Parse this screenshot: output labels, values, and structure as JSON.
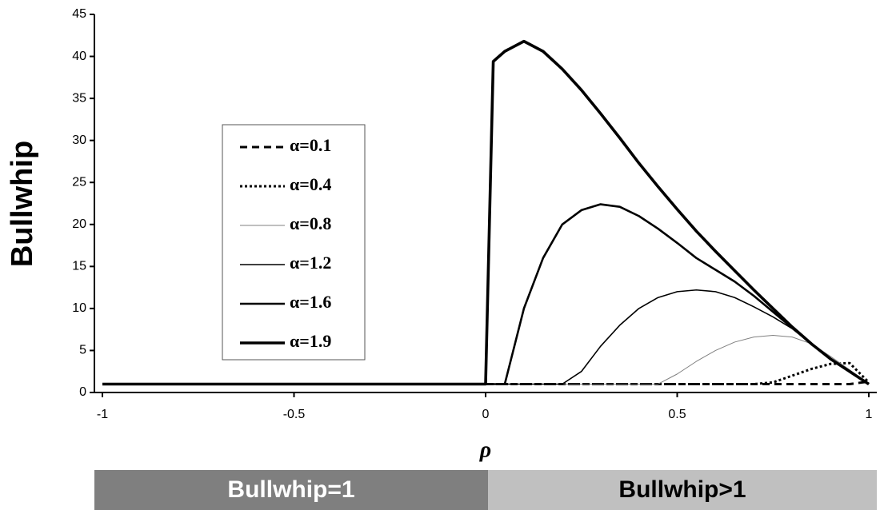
{
  "chart_data": {
    "type": "line",
    "x_label": "ρ",
    "y_label": "Bullwhip",
    "xlim": [
      -1,
      1
    ],
    "ylim": [
      0,
      45
    ],
    "xticks": [
      -1,
      -0.5,
      0,
      0.5,
      1
    ],
    "yticks": [
      0,
      5,
      10,
      15,
      20,
      25,
      30,
      35,
      40,
      45
    ],
    "x": [
      -1,
      -0.5,
      0,
      0.02,
      0.05,
      0.1,
      0.15,
      0.2,
      0.25,
      0.3,
      0.35,
      0.4,
      0.45,
      0.5,
      0.55,
      0.6,
      0.65,
      0.7,
      0.75,
      0.8,
      0.85,
      0.9,
      0.95,
      1
    ],
    "series": [
      {
        "name": "α=0.1",
        "color": "#000000",
        "width": 3,
        "dash": "9 6",
        "values": [
          1,
          1,
          1,
          1,
          1,
          1,
          1,
          1,
          1,
          1,
          1,
          1,
          1,
          1,
          1,
          1,
          1,
          1,
          1,
          1,
          1,
          1,
          1,
          1.3
        ]
      },
      {
        "name": "α=0.4",
        "color": "#000000",
        "width": 3,
        "dash": "3 3",
        "values": [
          1,
          1,
          1,
          1,
          1,
          1,
          1,
          1,
          1,
          1,
          1,
          1,
          1,
          1,
          1,
          1,
          1,
          1,
          1.2,
          2,
          2.8,
          3.4,
          3.5,
          1.2
        ]
      },
      {
        "name": "α=0.8",
        "color": "#808080",
        "width": 1,
        "dash": "none",
        "values": [
          1,
          1,
          1,
          1,
          1,
          1,
          1,
          1,
          1,
          1,
          1,
          1,
          1,
          2.2,
          3.7,
          5,
          6,
          6.6,
          6.8,
          6.6,
          5.8,
          4.3,
          2.7,
          1
        ]
      },
      {
        "name": "α=1.2",
        "color": "#000000",
        "width": 1.6,
        "dash": "none",
        "values": [
          1,
          1,
          1,
          1,
          1,
          1,
          1,
          1,
          2.5,
          5.5,
          8,
          10,
          11.3,
          12,
          12.2,
          12,
          11.3,
          10.2,
          9,
          7.6,
          5.8,
          4,
          2.5,
          1
        ]
      },
      {
        "name": "α=1.6",
        "color": "#000000",
        "width": 2.6,
        "dash": "none",
        "values": [
          1,
          1,
          1,
          1,
          1,
          10,
          16,
          20,
          21.7,
          22.4,
          22.1,
          21,
          19.5,
          17.8,
          16,
          14.6,
          13.2,
          11.5,
          9.6,
          7.7,
          5.8,
          4,
          2.5,
          1
        ]
      },
      {
        "name": "α=1.9",
        "color": "#000000",
        "width": 3.6,
        "dash": "none",
        "values": [
          1,
          1,
          1,
          39.4,
          40.6,
          41.8,
          40.6,
          38.5,
          36,
          33.2,
          30.3,
          27.3,
          24.5,
          21.8,
          19.2,
          16.8,
          14.5,
          12.2,
          10,
          7.8,
          5.8,
          4,
          2.5,
          1
        ]
      }
    ],
    "bands": [
      {
        "label": "Bullwhip=1",
        "color": "#7f7f7f"
      },
      {
        "label": "Bullwhip>1",
        "color": "#c0c0c0"
      }
    ]
  }
}
